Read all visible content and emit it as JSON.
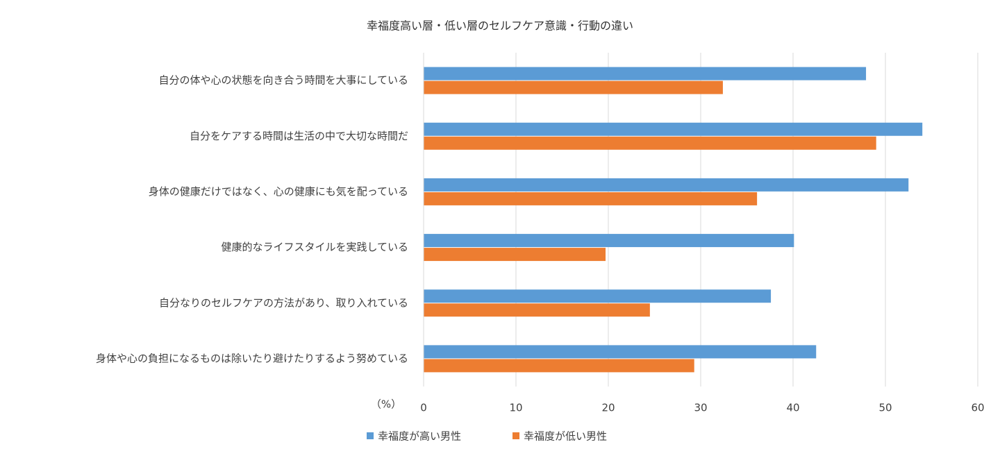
{
  "chart_data": {
    "type": "barh",
    "title": "幸福度高い層・低い層のセルフケア意識・行動の違い",
    "xlabel": "（%）",
    "categories": [
      "自分の体や心の状態を向き合う時間を大事にしている",
      "自分をケアする時間は生活の中で大切な時間だ",
      "身体の健康だけではなく、心の健康にも気を配っている",
      "健康的なライフスタイルを実践している",
      "自分なりのセルフケアの方法があり、取り入れている",
      "身体や心の負担になるものは除いたり避けたりするよう努めている"
    ],
    "series": [
      {
        "name": "幸福度が高い男性",
        "color": "#5b9bd5",
        "values": [
          47.9,
          54.0,
          52.5,
          40.1,
          37.6,
          42.5
        ]
      },
      {
        "name": "幸福度が低い男性",
        "color": "#ed7d31",
        "values": [
          32.4,
          49.0,
          36.1,
          19.7,
          24.5,
          29.3
        ]
      }
    ],
    "xlim": [
      0,
      60
    ],
    "xticks": [
      0,
      10,
      20,
      30,
      40,
      50,
      60
    ],
    "grid": true
  }
}
